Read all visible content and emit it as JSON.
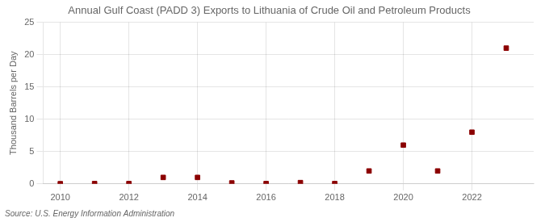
{
  "chart_data": {
    "type": "scatter",
    "title": "Annual Gulf Coast (PADD 3) Exports to Lithuania of Crude Oil and Petroleum Products",
    "ylabel": "Thousand Barrels per Day",
    "source": "Source: U.S. Energy Information Administration",
    "x": [
      2010,
      2011,
      2012,
      2013,
      2014,
      2015,
      2016,
      2017,
      2018,
      2019,
      2020,
      2021,
      2022,
      2023
    ],
    "values": [
      0.03,
      0.05,
      0.05,
      1.0,
      1.0,
      0.15,
      0.05,
      0.2,
      0.05,
      2.0,
      6.0,
      2.0,
      8.0,
      21.0
    ],
    "color": "#8b0000",
    "marker": "square",
    "xlim": [
      2009.5,
      2023.8
    ],
    "ylim": [
      0,
      25
    ],
    "xticks": [
      2010,
      2012,
      2014,
      2016,
      2018,
      2020,
      2022
    ],
    "yticks": [
      0,
      5,
      10,
      15,
      20,
      25
    ],
    "grid": true
  }
}
